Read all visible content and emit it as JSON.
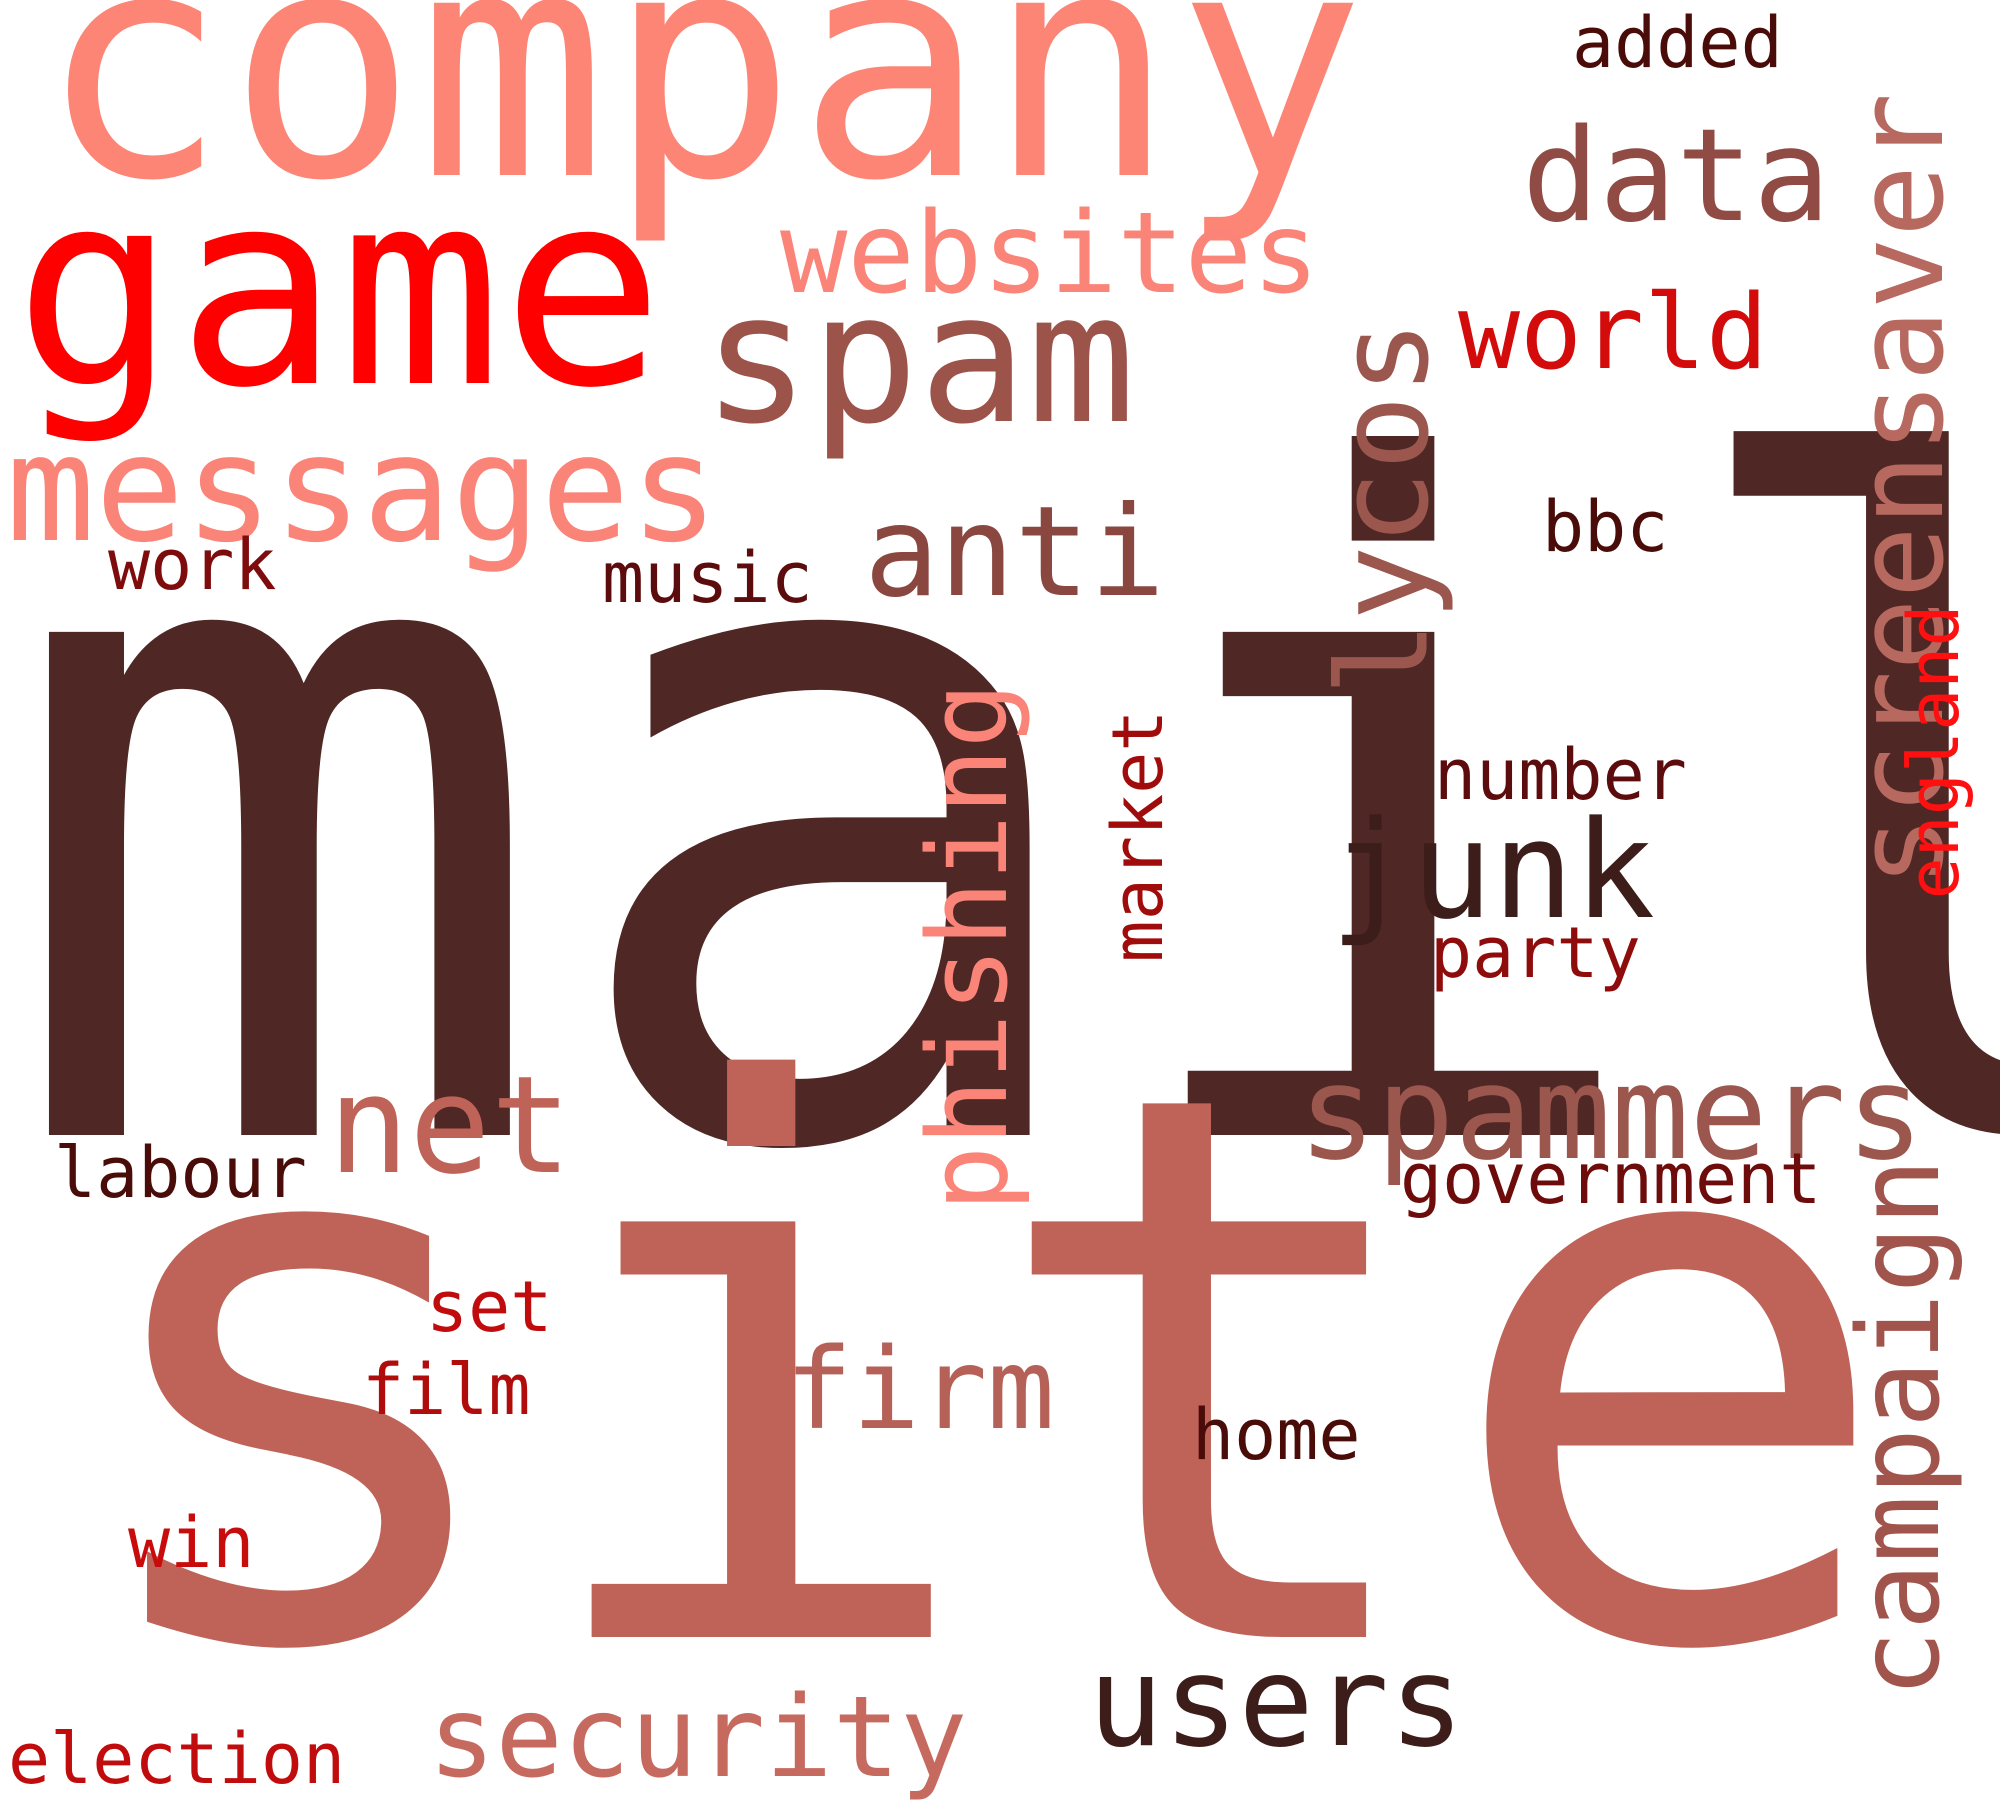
{
  "words": [
    {
      "text": "mail",
      "color": "#4f2724"
    },
    {
      "text": "site",
      "color": "#bf6358"
    },
    {
      "text": "company",
      "color": "#fd8576"
    },
    {
      "text": "game",
      "color": "#ff0000"
    },
    {
      "text": "spam",
      "color": "#9b534a"
    },
    {
      "text": "websites",
      "color": "#fa8478"
    },
    {
      "text": "data",
      "color": "#8f4b44"
    },
    {
      "text": "added",
      "color": "#4a0c08"
    },
    {
      "text": "world",
      "color": "#d30b0b"
    },
    {
      "text": "screensaver",
      "color": "#b7685f"
    },
    {
      "text": "lycos",
      "color": "#9b564d"
    },
    {
      "text": "messages",
      "color": "#fa8478"
    },
    {
      "text": "anti",
      "color": "#8a4740"
    },
    {
      "text": "bbc",
      "color": "#4a0c08"
    },
    {
      "text": "work",
      "color": "#7f0c0c"
    },
    {
      "text": "music",
      "color": "#5c0c0c"
    },
    {
      "text": "phishing",
      "color": "#fa8478"
    },
    {
      "text": "market",
      "color": "#a00c0c"
    },
    {
      "text": "number",
      "color": "#5c0c0c"
    },
    {
      "text": "junk",
      "color": "#3c1d1a"
    },
    {
      "text": "england",
      "color": "#ff1010"
    },
    {
      "text": "party",
      "color": "#8f0c0c"
    },
    {
      "text": "spammers",
      "color": "#9b564d"
    },
    {
      "text": "net",
      "color": "#bf6358"
    },
    {
      "text": "labour",
      "color": "#4a0c08"
    },
    {
      "text": "government",
      "color": "#6e0c0c"
    },
    {
      "text": "set",
      "color": "#c00c0c"
    },
    {
      "text": "film",
      "color": "#b00c0c"
    },
    {
      "text": "firm",
      "color": "#b56158"
    },
    {
      "text": "home",
      "color": "#4a0c08"
    },
    {
      "text": "campaign",
      "color": "#a0544c"
    },
    {
      "text": "win",
      "color": "#c80c0c"
    },
    {
      "text": "users",
      "color": "#3c1d1a"
    },
    {
      "text": "security",
      "color": "#c66a60"
    },
    {
      "text": "election",
      "color": "#c00c0c"
    }
  ]
}
